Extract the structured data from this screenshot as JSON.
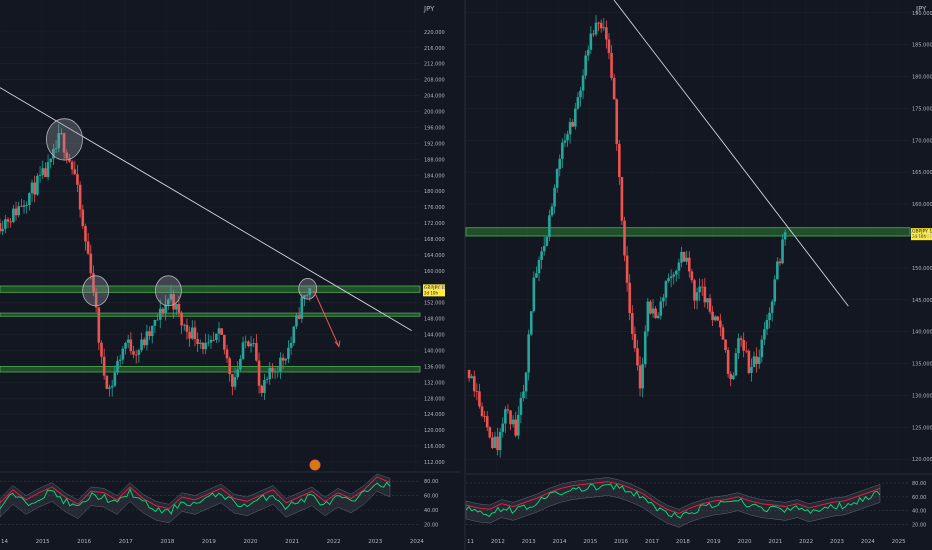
{
  "colors": {
    "background": "#131722",
    "grid": "#1e222d",
    "axis_text": "#b2b5be",
    "bull": "#26a69a",
    "bear": "#ef5350",
    "zone_fill": "#2e7d32",
    "zone_line": "#4caf50",
    "trendline": "#d1d4dc",
    "price_label_bg": "#ffeb3b",
    "osc_green": "#00e676",
    "osc_red": "#ff1744",
    "osc_band": "#5d606b"
  },
  "chart_data": [
    {
      "type": "candlestick",
      "title": "",
      "currency_label": "JPY",
      "x_ticks": [
        "14",
        "2015",
        "2016",
        "2017",
        "2018",
        "2019",
        "2020",
        "2021",
        "2022",
        "2023",
        "2024"
      ],
      "y_ticks": [
        "112.000",
        "116.000",
        "120.000",
        "124.000",
        "128.000",
        "132.000",
        "136.000",
        "140.000",
        "144.000",
        "148.000",
        "152.000",
        "156.000",
        "160.000",
        "164.000",
        "168.000",
        "172.000",
        "176.000",
        "180.000",
        "184.000",
        "188.000",
        "192.000",
        "196.000",
        "200.000",
        "204.000",
        "208.000",
        "212.000",
        "216.000",
        "220.000"
      ],
      "ylim": [
        110,
        228
      ],
      "xlim": [
        2014.0,
        2024.1
      ],
      "price_label": {
        "ticker": "GBPJPY",
        "price": "155.592",
        "sub": "2d 10h"
      },
      "close_series": [
        {
          "x": 2014.0,
          "y": 172
        },
        {
          "x": 2014.3,
          "y": 174
        },
        {
          "x": 2014.6,
          "y": 178
        },
        {
          "x": 2014.9,
          "y": 182
        },
        {
          "x": 2015.2,
          "y": 186
        },
        {
          "x": 2015.45,
          "y": 194
        },
        {
          "x": 2015.6,
          "y": 190
        },
        {
          "x": 2015.8,
          "y": 184
        },
        {
          "x": 2016.0,
          "y": 170
        },
        {
          "x": 2016.2,
          "y": 160
        },
        {
          "x": 2016.45,
          "y": 136
        },
        {
          "x": 2016.65,
          "y": 130
        },
        {
          "x": 2016.8,
          "y": 136
        },
        {
          "x": 2017.0,
          "y": 142
        },
        {
          "x": 2017.3,
          "y": 140
        },
        {
          "x": 2017.6,
          "y": 144
        },
        {
          "x": 2017.9,
          "y": 150
        },
        {
          "x": 2018.1,
          "y": 154
        },
        {
          "x": 2018.4,
          "y": 146
        },
        {
          "x": 2018.7,
          "y": 144
        },
        {
          "x": 2019.0,
          "y": 140
        },
        {
          "x": 2019.3,
          "y": 144
        },
        {
          "x": 2019.6,
          "y": 132
        },
        {
          "x": 2019.9,
          "y": 142
        },
        {
          "x": 2020.1,
          "y": 144
        },
        {
          "x": 2020.25,
          "y": 128
        },
        {
          "x": 2020.5,
          "y": 134
        },
        {
          "x": 2020.8,
          "y": 138
        },
        {
          "x": 2021.0,
          "y": 142
        },
        {
          "x": 2021.25,
          "y": 152
        },
        {
          "x": 2021.45,
          "y": 155.6
        }
      ],
      "support_resistance_zones": [
        {
          "low": 154.6,
          "high": 156.2
        },
        {
          "low": 148.6,
          "high": 149.4
        },
        {
          "low": 134.6,
          "high": 136.0
        }
      ],
      "trendline": {
        "from": {
          "x": 2014.0,
          "y": 206
        },
        "to": {
          "x": 2023.9,
          "y": 145
        }
      },
      "highlight_circles": [
        {
          "x": 2015.55,
          "y": 193
        },
        {
          "x": 2016.3,
          "y": 155
        },
        {
          "x": 2018.05,
          "y": 155
        },
        {
          "x": 2021.4,
          "y": 155.5
        }
      ],
      "projection_arrow": {
        "from": {
          "x": 2021.55,
          "y": 155
        },
        "to": {
          "x": 2022.15,
          "y": 141
        }
      },
      "oscillator": {
        "y_ticks": [
          "20.00",
          "40.00",
          "60.00",
          "80.00"
        ],
        "ylim": [
          15,
          90
        ],
        "values": [
          44,
          62,
          48,
          58,
          66,
          52,
          42,
          60,
          58,
          48,
          66,
          50,
          40,
          36,
          52,
          48,
          56,
          64,
          50,
          46,
          54,
          62,
          44,
          52,
          60,
          46,
          58,
          50,
          62,
          80,
          72
        ]
      }
    },
    {
      "type": "candlestick",
      "title": "",
      "currency_label": "JPY",
      "x_ticks": [
        "11",
        "2012",
        "2013",
        "2014",
        "2015",
        "2016",
        "2017",
        "2018",
        "2019",
        "2020",
        "2021",
        "2022",
        "2023",
        "2024",
        "2025"
      ],
      "y_ticks": [
        "120.000",
        "125.000",
        "130.000",
        "135.000",
        "140.000",
        "145.000",
        "150.000",
        "155.000",
        "160.000",
        "165.000",
        "170.000",
        "175.000",
        "180.000",
        "185.000",
        "190.000"
      ],
      "ylim": [
        118,
        192
      ],
      "xlim": [
        2011.0,
        2025.4
      ],
      "price_label": {
        "ticker": "GBPJPY",
        "price": "155.592",
        "sub": "2d 10h"
      },
      "close_series": [
        {
          "x": 2011.1,
          "y": 134
        },
        {
          "x": 2011.4,
          "y": 130
        },
        {
          "x": 2011.7,
          "y": 124
        },
        {
          "x": 2012.0,
          "y": 122
        },
        {
          "x": 2012.3,
          "y": 128
        },
        {
          "x": 2012.6,
          "y": 124
        },
        {
          "x": 2012.9,
          "y": 132
        },
        {
          "x": 2013.2,
          "y": 148
        },
        {
          "x": 2013.5,
          "y": 152
        },
        {
          "x": 2013.8,
          "y": 160
        },
        {
          "x": 2014.1,
          "y": 170
        },
        {
          "x": 2014.4,
          "y": 172
        },
        {
          "x": 2014.7,
          "y": 178
        },
        {
          "x": 2015.0,
          "y": 185
        },
        {
          "x": 2015.3,
          "y": 188
        },
        {
          "x": 2015.55,
          "y": 186
        },
        {
          "x": 2015.8,
          "y": 176
        },
        {
          "x": 2016.0,
          "y": 162
        },
        {
          "x": 2016.35,
          "y": 140
        },
        {
          "x": 2016.65,
          "y": 132
        },
        {
          "x": 2016.9,
          "y": 144
        },
        {
          "x": 2017.2,
          "y": 142
        },
        {
          "x": 2017.5,
          "y": 148
        },
        {
          "x": 2017.8,
          "y": 150
        },
        {
          "x": 2018.1,
          "y": 152
        },
        {
          "x": 2018.4,
          "y": 146
        },
        {
          "x": 2018.7,
          "y": 146
        },
        {
          "x": 2019.0,
          "y": 142
        },
        {
          "x": 2019.3,
          "y": 140
        },
        {
          "x": 2019.6,
          "y": 132
        },
        {
          "x": 2019.9,
          "y": 140
        },
        {
          "x": 2020.2,
          "y": 134
        },
        {
          "x": 2020.5,
          "y": 136
        },
        {
          "x": 2020.8,
          "y": 142
        },
        {
          "x": 2021.1,
          "y": 150
        },
        {
          "x": 2021.35,
          "y": 155.6
        }
      ],
      "support_resistance_zones": [
        {
          "low": 155.0,
          "high": 156.3
        }
      ],
      "trendline": {
        "from": {
          "x": 2015.8,
          "y": 192
        },
        "to": {
          "x": 2023.4,
          "y": 144
        }
      },
      "oscillator": {
        "y_ticks": [
          "20.00",
          "40.00",
          "60.00",
          "80.00"
        ],
        "ylim": [
          15,
          90
        ],
        "values": [
          42,
          38,
          36,
          44,
          40,
          46,
          52,
          60,
          66,
          70,
          72,
          74,
          76,
          72,
          66,
          58,
          46,
          36,
          30,
          38,
          44,
          48,
          50,
          54,
          48,
          44,
          42,
          40,
          44,
          38,
          42,
          46,
          48,
          54,
          60,
          66
        ]
      }
    }
  ]
}
